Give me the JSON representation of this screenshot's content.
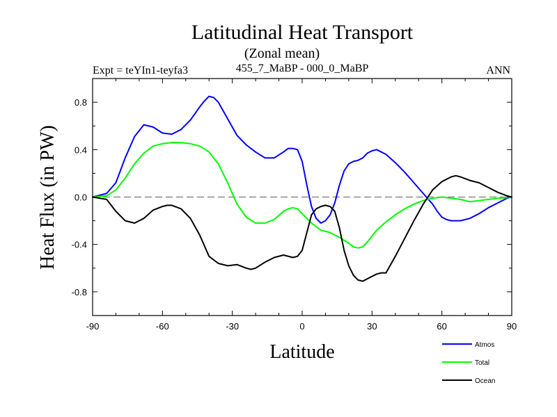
{
  "chart_data": {
    "type": "line",
    "title": "Latitudinal Heat Transport",
    "subtitle": "(Zonal mean)",
    "left_string": "Expt = teYIn1-teyfa3",
    "center_string": "455_7_MaBP - 000_0_MaBP",
    "right_string": "ANN",
    "xlabel": "Latitude",
    "ylabel": "Heat Flux (in PW)",
    "xlim": [
      -90,
      90
    ],
    "ylim": [
      -1.0,
      1.0
    ],
    "xticks": [
      -90,
      -60,
      -30,
      0,
      30,
      60,
      90
    ],
    "xtick_labels": [
      "-90",
      "-60",
      "-30",
      "0",
      "30",
      "60",
      "90"
    ],
    "yticks": [
      -0.8,
      -0.4,
      0.0,
      0.4,
      0.8
    ],
    "ytick_labels": [
      "-0.8",
      "-0.4",
      "0.0",
      "0.4",
      "0.8"
    ],
    "reference_line": 0.0,
    "legend_position": "bottom-right",
    "series": [
      {
        "name": "Atmos",
        "color": "#0000ff",
        "x": [
          -90,
          -84,
          -80,
          -76,
          -72,
          -68,
          -64,
          -60,
          -56,
          -52,
          -48,
          -44,
          -42,
          -40,
          -38,
          -36,
          -32,
          -28,
          -24,
          -20,
          -16,
          -12,
          -8,
          -6,
          -4,
          -2,
          0,
          2,
          4,
          6,
          8,
          10,
          12,
          14,
          16,
          18,
          20,
          22,
          24,
          26,
          28,
          30,
          32,
          34,
          36,
          40,
          44,
          48,
          52,
          56,
          58,
          60,
          62,
          64,
          66,
          68,
          72,
          76,
          80,
          84,
          88,
          90
        ],
        "y": [
          0,
          0.03,
          0.12,
          0.33,
          0.51,
          0.61,
          0.59,
          0.54,
          0.53,
          0.57,
          0.65,
          0.76,
          0.81,
          0.85,
          0.84,
          0.8,
          0.66,
          0.52,
          0.44,
          0.38,
          0.33,
          0.33,
          0.38,
          0.41,
          0.41,
          0.4,
          0.3,
          0.1,
          -0.08,
          -0.18,
          -0.22,
          -0.2,
          -0.15,
          -0.05,
          0.1,
          0.22,
          0.28,
          0.3,
          0.31,
          0.33,
          0.37,
          0.39,
          0.4,
          0.38,
          0.36,
          0.29,
          0.21,
          0.12,
          0.03,
          -0.06,
          -0.12,
          -0.17,
          -0.19,
          -0.2,
          -0.2,
          -0.2,
          -0.18,
          -0.14,
          -0.09,
          -0.05,
          -0.01,
          0
        ]
      },
      {
        "name": "Total",
        "color": "#00ff00",
        "x": [
          -90,
          -84,
          -80,
          -76,
          -72,
          -68,
          -64,
          -60,
          -56,
          -52,
          -48,
          -44,
          -40,
          -36,
          -32,
          -28,
          -24,
          -20,
          -16,
          -12,
          -8,
          -6,
          -4,
          -2,
          0,
          4,
          8,
          12,
          16,
          20,
          22,
          24,
          26,
          28,
          30,
          32,
          36,
          40,
          44,
          48,
          52,
          56,
          60,
          64,
          68,
          72,
          76,
          80,
          84,
          88,
          90
        ],
        "y": [
          0,
          0.01,
          0.06,
          0.16,
          0.28,
          0.37,
          0.43,
          0.45,
          0.46,
          0.46,
          0.45,
          0.43,
          0.38,
          0.28,
          0.12,
          -0.06,
          -0.17,
          -0.22,
          -0.22,
          -0.19,
          -0.12,
          -0.1,
          -0.09,
          -0.1,
          -0.14,
          -0.22,
          -0.28,
          -0.3,
          -0.34,
          -0.39,
          -0.42,
          -0.43,
          -0.42,
          -0.38,
          -0.33,
          -0.28,
          -0.21,
          -0.15,
          -0.1,
          -0.06,
          -0.03,
          -0.01,
          0.0,
          -0.01,
          -0.02,
          -0.04,
          -0.03,
          -0.02,
          -0.01,
          -0.005,
          0
        ]
      },
      {
        "name": "Ocean",
        "color": "#000000",
        "x": [
          -90,
          -84,
          -80,
          -76,
          -72,
          -68,
          -64,
          -60,
          -58,
          -56,
          -52,
          -48,
          -44,
          -40,
          -36,
          -32,
          -28,
          -24,
          -22,
          -20,
          -16,
          -12,
          -8,
          -4,
          -2,
          0,
          2,
          4,
          6,
          8,
          10,
          12,
          14,
          16,
          18,
          20,
          22,
          24,
          26,
          28,
          30,
          32,
          34,
          36,
          40,
          44,
          48,
          52,
          56,
          60,
          64,
          66,
          68,
          72,
          76,
          80,
          84,
          88,
          90
        ],
        "y": [
          0,
          -0.02,
          -0.12,
          -0.2,
          -0.22,
          -0.18,
          -0.11,
          -0.08,
          -0.07,
          -0.07,
          -0.1,
          -0.18,
          -0.32,
          -0.5,
          -0.56,
          -0.58,
          -0.57,
          -0.6,
          -0.61,
          -0.6,
          -0.55,
          -0.51,
          -0.49,
          -0.51,
          -0.5,
          -0.45,
          -0.3,
          -0.15,
          -0.1,
          -0.08,
          -0.07,
          -0.08,
          -0.12,
          -0.26,
          -0.45,
          -0.58,
          -0.66,
          -0.7,
          -0.71,
          -0.69,
          -0.67,
          -0.65,
          -0.64,
          -0.64,
          -0.5,
          -0.35,
          -0.2,
          -0.06,
          0.06,
          0.13,
          0.17,
          0.18,
          0.17,
          0.14,
          0.12,
          0.08,
          0.04,
          0.01,
          0
        ]
      }
    ]
  }
}
